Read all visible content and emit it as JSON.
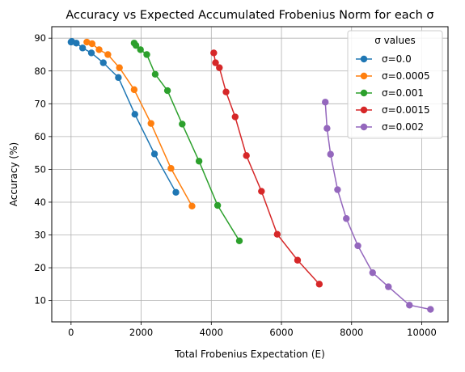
{
  "chart_data": {
    "type": "line",
    "title": "Accuracy vs Expected Accumulated Frobenius Norm for each σ",
    "xlabel": "Total Frobenius Expectation (E)",
    "ylabel": "Accuracy (%)",
    "xlim": [
      -550,
      10750
    ],
    "ylim": [
      3.5,
      93.5
    ],
    "xticks": [
      0,
      2000,
      4000,
      6000,
      8000,
      10000
    ],
    "yticks": [
      10,
      20,
      30,
      40,
      50,
      60,
      70,
      80,
      90
    ],
    "grid": true,
    "legend": {
      "title": "σ values",
      "placement": "top-right"
    },
    "series": [
      {
        "name": "σ=0.0",
        "color": "#1f77b4",
        "x": [
          0,
          20,
          150,
          330,
          580,
          920,
          1350,
          1820,
          2380,
          2990
        ],
        "y": [
          88.8,
          89.0,
          88.5,
          87.0,
          85.5,
          82.5,
          78.0,
          66.8,
          54.7,
          43.0
        ]
      },
      {
        "name": "σ=0.0005",
        "color": "#ff7f0e",
        "x": [
          450,
          600,
          800,
          1050,
          1380,
          1800,
          2280,
          2850,
          3450
        ],
        "y": [
          88.8,
          88.3,
          86.5,
          85.0,
          81.0,
          74.3,
          64.0,
          50.3,
          38.8
        ]
      },
      {
        "name": "σ=0.001",
        "color": "#2ca02c",
        "x": [
          1800,
          1850,
          1980,
          2160,
          2400,
          2750,
          3170,
          3650,
          4180,
          4800
        ],
        "y": [
          88.5,
          87.8,
          86.5,
          85.0,
          79.0,
          74.0,
          63.8,
          52.5,
          39.0,
          28.2
        ]
      },
      {
        "name": "σ=0.0015",
        "color": "#d62728",
        "x": [
          4070,
          4120,
          4230,
          4420,
          4680,
          5000,
          5430,
          5880,
          6460,
          7080
        ],
        "y": [
          85.5,
          82.5,
          81.0,
          73.6,
          66.0,
          54.2,
          43.3,
          30.2,
          22.3,
          15.0
        ]
      },
      {
        "name": "σ=0.002",
        "color": "#9467bd",
        "x": [
          7250,
          7300,
          7400,
          7600,
          7850,
          8180,
          8600,
          9050,
          9650,
          10250
        ],
        "y": [
          70.5,
          62.5,
          54.6,
          43.8,
          35.0,
          26.7,
          18.5,
          14.2,
          8.6,
          7.3
        ]
      }
    ]
  }
}
